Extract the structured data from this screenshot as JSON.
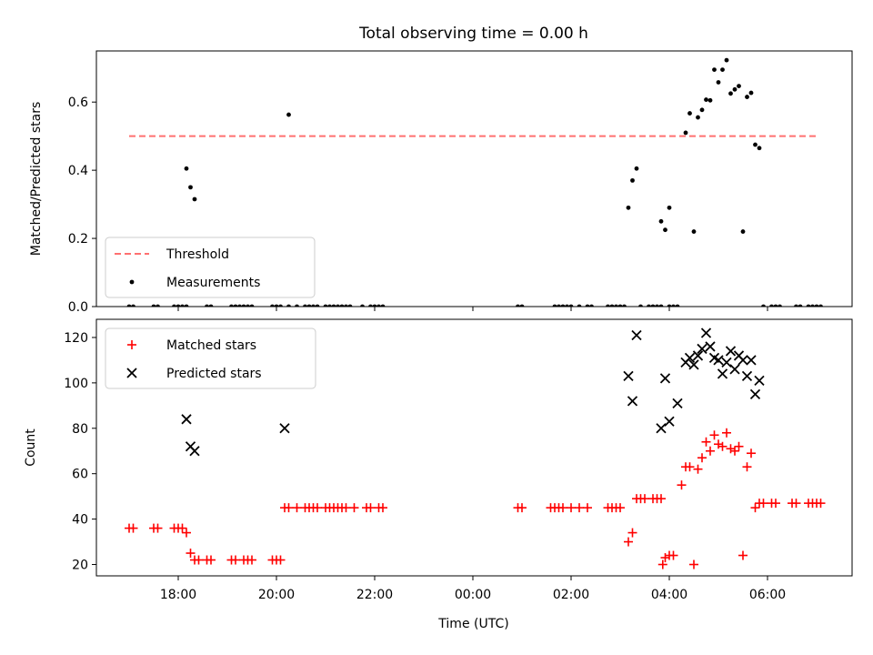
{
  "chart_data": {
    "type": "scatter",
    "title": "Total observing time = 0.00 h",
    "xlabel": "Time (UTC)",
    "x_tick_labels": [
      "18:00",
      "20:00",
      "22:00",
      "00:00",
      "02:00",
      "04:00",
      "06:00"
    ],
    "colors": {
      "threshold": "#ff7070",
      "measurements": "#000000",
      "matched": "#ff0000",
      "predicted": "#000000"
    },
    "panels": [
      {
        "ylabel": "Matched/Predicted stars",
        "ylim": [
          0,
          0.75
        ],
        "yticks": [
          0.0,
          0.2,
          0.4,
          0.6
        ],
        "ytick_labels": [
          "0.0",
          "0.2",
          "0.4",
          "0.6"
        ],
        "legend": {
          "position": "lower left",
          "entries": [
            "Threshold",
            "Measurements"
          ]
        },
        "threshold": {
          "name": "Threshold",
          "x_range": [
            "17:00",
            "07:00"
          ],
          "y": 0.5
        },
        "series": [
          {
            "name": "Measurements",
            "marker": "dot",
            "points": [
              [
                "18:10",
                0.405
              ],
              [
                "18:15",
                0.35
              ],
              [
                "18:20",
                0.315
              ],
              [
                "20:15",
                0.563
              ],
              [
                "03:10",
                0.29
              ],
              [
                "03:15",
                0.37
              ],
              [
                "03:20",
                0.405
              ],
              [
                "03:50",
                0.25
              ],
              [
                "03:55",
                0.225
              ],
              [
                "04:00",
                0.29
              ],
              [
                "04:20",
                0.51
              ],
              [
                "04:25",
                0.567
              ],
              [
                "04:30",
                0.22
              ],
              [
                "04:35",
                0.555
              ],
              [
                "04:40",
                0.577
              ],
              [
                "04:45",
                0.607
              ],
              [
                "04:50",
                0.605
              ],
              [
                "04:55",
                0.695
              ],
              [
                "05:00",
                0.658
              ],
              [
                "05:05",
                0.695
              ],
              [
                "05:10",
                0.723
              ],
              [
                "05:15",
                0.625
              ],
              [
                "05:20",
                0.637
              ],
              [
                "05:25",
                0.647
              ],
              [
                "05:30",
                0.22
              ],
              [
                "05:35",
                0.615
              ],
              [
                "05:40",
                0.627
              ],
              [
                "05:45",
                0.475
              ],
              [
                "05:50",
                0.465
              ],
              [
                "17:00",
                0
              ],
              [
                "17:05",
                0
              ],
              [
                "17:30",
                0
              ],
              [
                "17:35",
                0
              ],
              [
                "17:55",
                0
              ],
              [
                "18:00",
                0
              ],
              [
                "18:05",
                0
              ],
              [
                "18:10",
                0
              ],
              [
                "18:35",
                0
              ],
              [
                "18:40",
                0
              ],
              [
                "19:05",
                0
              ],
              [
                "19:10",
                0
              ],
              [
                "19:15",
                0
              ],
              [
                "19:20",
                0
              ],
              [
                "19:25",
                0
              ],
              [
                "19:30",
                0
              ],
              [
                "19:55",
                0
              ],
              [
                "20:00",
                0
              ],
              [
                "20:05",
                0
              ],
              [
                "20:15",
                0
              ],
              [
                "20:25",
                0
              ],
              [
                "20:35",
                0
              ],
              [
                "20:40",
                0
              ],
              [
                "20:45",
                0
              ],
              [
                "20:50",
                0
              ],
              [
                "21:00",
                0
              ],
              [
                "21:05",
                0
              ],
              [
                "21:10",
                0
              ],
              [
                "21:15",
                0
              ],
              [
                "21:20",
                0
              ],
              [
                "21:25",
                0
              ],
              [
                "21:30",
                0
              ],
              [
                "21:45",
                0
              ],
              [
                "21:55",
                0
              ],
              [
                "22:00",
                0
              ],
              [
                "22:05",
                0
              ],
              [
                "22:10",
                0
              ],
              [
                "00:55",
                0
              ],
              [
                "01:00",
                0
              ],
              [
                "01:40",
                0
              ],
              [
                "01:45",
                0
              ],
              [
                "01:50",
                0
              ],
              [
                "01:55",
                0
              ],
              [
                "02:00",
                0
              ],
              [
                "02:10",
                0
              ],
              [
                "02:20",
                0
              ],
              [
                "02:25",
                0
              ],
              [
                "02:45",
                0
              ],
              [
                "02:50",
                0
              ],
              [
                "02:55",
                0
              ],
              [
                "03:00",
                0
              ],
              [
                "03:05",
                0
              ],
              [
                "03:25",
                0
              ],
              [
                "03:35",
                0
              ],
              [
                "03:40",
                0
              ],
              [
                "03:45",
                0
              ],
              [
                "03:50",
                0
              ],
              [
                "04:00",
                0
              ],
              [
                "04:05",
                0
              ],
              [
                "04:10",
                0
              ],
              [
                "05:55",
                0
              ],
              [
                "06:05",
                0
              ],
              [
                "06:10",
                0
              ],
              [
                "06:15",
                0
              ],
              [
                "06:35",
                0
              ],
              [
                "06:40",
                0
              ],
              [
                "06:50",
                0
              ],
              [
                "06:55",
                0
              ],
              [
                "07:00",
                0
              ],
              [
                "07:05",
                0
              ]
            ]
          }
        ]
      },
      {
        "ylabel": "Count",
        "ylim": [
          15,
          128
        ],
        "yticks": [
          20,
          40,
          60,
          80,
          100,
          120
        ],
        "ytick_labels": [
          "20",
          "40",
          "60",
          "80",
          "100",
          "120"
        ],
        "legend": {
          "position": "upper left",
          "entries": [
            "Matched stars",
            "Predicted stars"
          ]
        },
        "series": [
          {
            "name": "Matched stars",
            "marker": "plus",
            "points": [
              [
                "17:00",
                36
              ],
              [
                "17:05",
                36
              ],
              [
                "17:30",
                36
              ],
              [
                "17:35",
                36
              ],
              [
                "17:55",
                36
              ],
              [
                "18:00",
                36
              ],
              [
                "18:05",
                36
              ],
              [
                "18:10",
                34
              ],
              [
                "18:15",
                25
              ],
              [
                "18:20",
                22
              ],
              [
                "18:25",
                22
              ],
              [
                "18:35",
                22
              ],
              [
                "18:40",
                22
              ],
              [
                "19:05",
                22
              ],
              [
                "19:10",
                22
              ],
              [
                "19:20",
                22
              ],
              [
                "19:25",
                22
              ],
              [
                "19:30",
                22
              ],
              [
                "19:55",
                22
              ],
              [
                "20:00",
                22
              ],
              [
                "20:05",
                22
              ],
              [
                "20:10",
                45
              ],
              [
                "20:15",
                45
              ],
              [
                "20:25",
                45
              ],
              [
                "20:35",
                45
              ],
              [
                "20:40",
                45
              ],
              [
                "20:45",
                45
              ],
              [
                "20:50",
                45
              ],
              [
                "21:00",
                45
              ],
              [
                "21:05",
                45
              ],
              [
                "21:10",
                45
              ],
              [
                "21:15",
                45
              ],
              [
                "21:20",
                45
              ],
              [
                "21:25",
                45
              ],
              [
                "21:35",
                45
              ],
              [
                "21:50",
                45
              ],
              [
                "21:55",
                45
              ],
              [
                "22:05",
                45
              ],
              [
                "22:10",
                45
              ],
              [
                "00:55",
                45
              ],
              [
                "01:00",
                45
              ],
              [
                "01:35",
                45
              ],
              [
                "01:40",
                45
              ],
              [
                "01:45",
                45
              ],
              [
                "01:50",
                45
              ],
              [
                "02:00",
                45
              ],
              [
                "02:10",
                45
              ],
              [
                "02:20",
                45
              ],
              [
                "02:45",
                45
              ],
              [
                "02:50",
                45
              ],
              [
                "02:55",
                45
              ],
              [
                "03:00",
                45
              ],
              [
                "03:10",
                30
              ],
              [
                "03:15",
                34
              ],
              [
                "03:20",
                49
              ],
              [
                "03:25",
                49
              ],
              [
                "03:30",
                49
              ],
              [
                "03:40",
                49
              ],
              [
                "03:45",
                49
              ],
              [
                "03:50",
                49
              ],
              [
                "03:52",
                20
              ],
              [
                "03:55",
                23
              ],
              [
                "04:00",
                24
              ],
              [
                "04:05",
                24
              ],
              [
                "04:15",
                55
              ],
              [
                "04:20",
                63
              ],
              [
                "04:25",
                63
              ],
              [
                "04:30",
                20
              ],
              [
                "04:35",
                62
              ],
              [
                "04:40",
                67
              ],
              [
                "04:45",
                74
              ],
              [
                "04:50",
                70
              ],
              [
                "04:55",
                77
              ],
              [
                "05:00",
                73
              ],
              [
                "05:05",
                72
              ],
              [
                "05:10",
                78
              ],
              [
                "05:15",
                71
              ],
              [
                "05:20",
                70
              ],
              [
                "05:25",
                72
              ],
              [
                "05:30",
                24
              ],
              [
                "05:35",
                63
              ],
              [
                "05:40",
                69
              ],
              [
                "05:45",
                45
              ],
              [
                "05:50",
                47
              ],
              [
                "05:55",
                47
              ],
              [
                "06:05",
                47
              ],
              [
                "06:10",
                47
              ],
              [
                "06:30",
                47
              ],
              [
                "06:35",
                47
              ],
              [
                "06:50",
                47
              ],
              [
                "06:55",
                47
              ],
              [
                "07:00",
                47
              ],
              [
                "07:05",
                47
              ]
            ]
          },
          {
            "name": "Predicted stars",
            "marker": "cross",
            "points": [
              [
                "18:10",
                84
              ],
              [
                "18:15",
                72
              ],
              [
                "18:20",
                70
              ],
              [
                "20:10",
                80
              ],
              [
                "03:10",
                103
              ],
              [
                "03:15",
                92
              ],
              [
                "03:20",
                121
              ],
              [
                "03:50",
                80
              ],
              [
                "03:55",
                102
              ],
              [
                "04:00",
                83
              ],
              [
                "04:10",
                91
              ],
              [
                "04:20",
                109
              ],
              [
                "04:25",
                111
              ],
              [
                "04:30",
                108
              ],
              [
                "04:35",
                112
              ],
              [
                "04:40",
                115
              ],
              [
                "04:45",
                122
              ],
              [
                "04:50",
                116
              ],
              [
                "04:55",
                111
              ],
              [
                "05:00",
                110
              ],
              [
                "05:05",
                104
              ],
              [
                "05:10",
                109
              ],
              [
                "05:15",
                114
              ],
              [
                "05:20",
                106
              ],
              [
                "05:25",
                112
              ],
              [
                "05:30",
                110
              ],
              [
                "05:35",
                103
              ],
              [
                "05:40",
                110
              ],
              [
                "05:45",
                95
              ],
              [
                "05:50",
                101
              ]
            ]
          }
        ]
      }
    ]
  }
}
